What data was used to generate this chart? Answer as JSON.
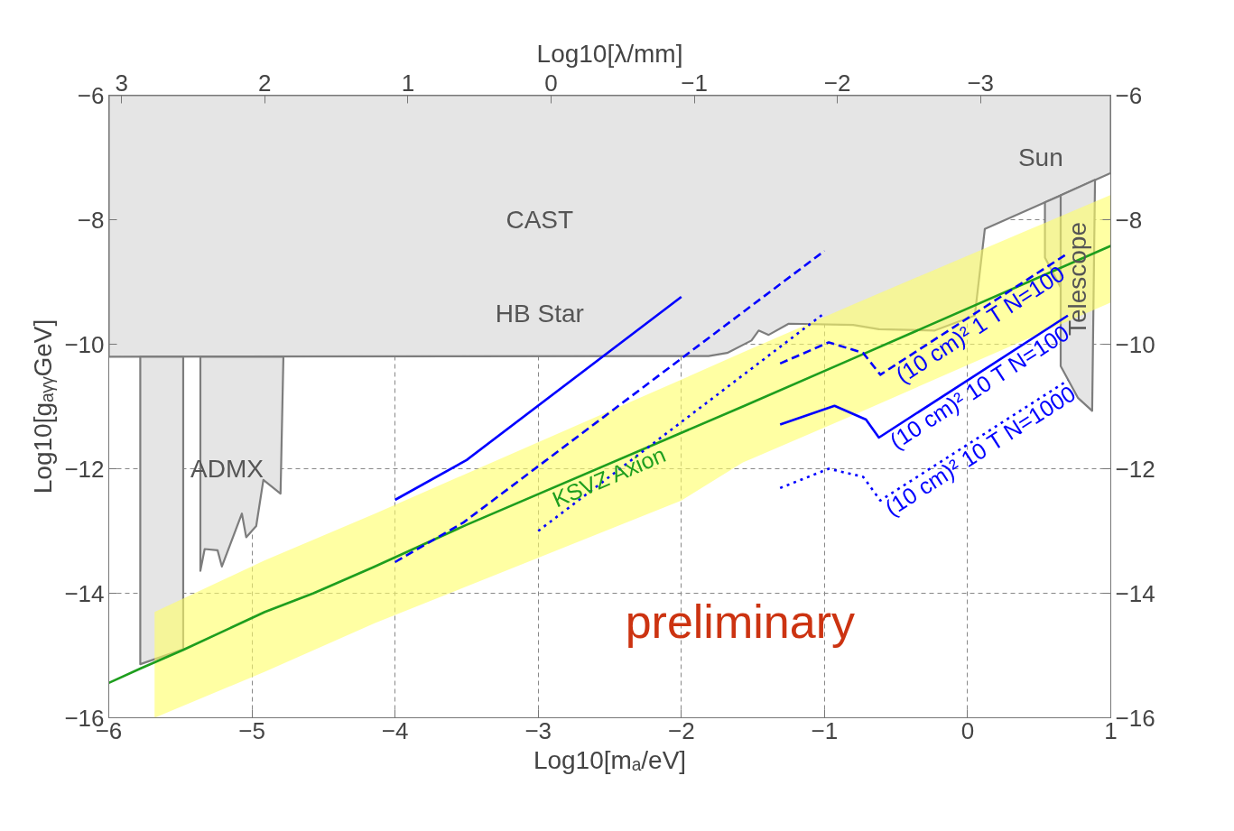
{
  "chart_data": {
    "type": "line",
    "xlabel": "Log10[mₐ/eV]",
    "ylabel": "Log10[gₐᵧᵧGeV]",
    "x2label": "Log10[λ/mm]",
    "xlim": [
      -6,
      1
    ],
    "xticks": [
      -6,
      -5,
      -4,
      -3,
      -2,
      -1,
      0,
      1
    ],
    "ylim": [
      -16,
      -6
    ],
    "yticks": [
      -16,
      -14,
      -12,
      -10,
      -8,
      -6
    ],
    "x2lim": [
      3.09,
      -3.91
    ],
    "x2ticks": [
      3,
      2,
      1,
      0,
      -1,
      -2,
      -3
    ],
    "y2lim": [
      -16,
      -6
    ],
    "y2ticks": [
      -16,
      -14,
      -12,
      -10,
      -8,
      -6
    ],
    "grid": true,
    "series": [
      {
        "type": "area",
        "color": "#e5e5e5",
        "line_style": "solid",
        "x": [
          -6,
          -1.81,
          -1.68,
          -1.51,
          -1.46,
          -1.39,
          -1.25,
          -0.8,
          -0.62,
          -0.23,
          0.05,
          0.12,
          0.54,
          1.0,
          1.0,
          -6
        ],
        "values": [
          -10.2,
          -10.19,
          -10.14,
          -9.94,
          -9.78,
          -9.85,
          -9.67,
          -9.69,
          -9.76,
          -9.78,
          -9.54,
          -8.15,
          -7.72,
          -7.25,
          -6,
          -6
        ]
      },
      {
        "type": "area",
        "color": "#e5e5e5",
        "line_style": "solid",
        "x": [
          -5.78,
          -5.78,
          -5.48,
          -5.48
        ],
        "values": [
          -10.2,
          -15.14,
          -14.9,
          -10.2
        ]
      },
      {
        "type": "area",
        "color": "#e5e5e5",
        "line_style": "solid",
        "x": [
          -5.36,
          -5.36,
          -5.33,
          -5.24,
          -5.21,
          -5.07,
          -5.04,
          -4.97,
          -4.92,
          -4.8,
          -4.78
        ],
        "values": [
          -10.2,
          -13.64,
          -13.29,
          -13.31,
          -13.57,
          -12.72,
          -13.1,
          -12.92,
          -12.18,
          -12.4,
          -10.2
        ]
      },
      {
        "type": "area",
        "color": "#e5e5e5",
        "line_style": "solid",
        "x": [
          0.54,
          0.54,
          0.66,
          0.66
        ],
        "values": [
          -7.72,
          -8.61,
          -9.13,
          -7.6
        ]
      },
      {
        "type": "area",
        "color": "#e5e5e5",
        "line_style": "solid",
        "x": [
          0.65,
          0.65,
          0.77,
          0.87,
          0.89
        ],
        "values": [
          -7.61,
          -10.35,
          -10.86,
          -11.07,
          -7.36
        ]
      },
      {
        "type": "area",
        "color": "#ffff66",
        "x": [
          -5.68,
          -4.91,
          -4.14,
          -2.0,
          -1.57,
          -0.79,
          0.53,
          1.0,
          1.0,
          0.53,
          -0.79,
          -1.57,
          -2.0,
          -4.14,
          -4.91,
          -5.68
        ],
        "values": [
          -16,
          -15.26,
          -14.48,
          -12.51,
          -11.9,
          -11.13,
          -9.8,
          -9.33,
          -7.6,
          -8.06,
          -9.35,
          -10.13,
          -10.57,
          -12.72,
          -13.47,
          -14.3
        ]
      },
      {
        "name": "KSVZ Axion",
        "color": "#1e9e1e",
        "line_style": "solid",
        "x": [
          -6,
          -5.78,
          -5.48,
          -4.91,
          -4.57,
          -4.15,
          -3.5,
          -1.57,
          -0.79,
          1.0
        ],
        "values": [
          -15.44,
          -15.21,
          -14.91,
          -14.3,
          -14.0,
          -13.58,
          -12.9,
          -11.0,
          -10.22,
          -8.42
        ]
      },
      {
        "color": "#0000ff",
        "line_style": "solid",
        "x": [
          -4,
          -3.5,
          -2
        ],
        "values": [
          -12.5,
          -11.86,
          -9.24
        ]
      },
      {
        "color": "#0000ff",
        "line_style": "dashed",
        "x": [
          -4,
          -3.52,
          -1
        ],
        "values": [
          -13.5,
          -12.86,
          -8.5
        ]
      },
      {
        "color": "#0000ff",
        "line_style": "dotted",
        "x": [
          -3,
          -1
        ],
        "values": [
          -13.0,
          -9.5
        ]
      },
      {
        "name": "(10 cm)² 1 T N=100",
        "color": "#0000ff",
        "line_style": "dashed",
        "x": [
          -1.31,
          -0.97,
          -0.73,
          -0.61,
          0.7
        ],
        "values": [
          -10.31,
          -9.97,
          -10.14,
          -10.49,
          -8.54
        ]
      },
      {
        "name": "(10 cm)² 10 T N=100",
        "color": "#0000ff",
        "line_style": "solid",
        "x": [
          -1.31,
          -0.93,
          -0.71,
          -0.62,
          0.7
        ],
        "values": [
          -11.29,
          -10.99,
          -11.21,
          -11.5,
          -9.54
        ]
      },
      {
        "name": "(10 cm)² 10 T N=1000",
        "color": "#0000ff",
        "line_style": "dotted",
        "x": [
          -1.31,
          -0.97,
          -0.73,
          -0.61,
          0.7
        ],
        "values": [
          -12.31,
          -12.0,
          -12.13,
          -12.51,
          -10.58
        ]
      }
    ],
    "annotations": [
      "CAST",
      "HB Star",
      "Sun",
      "ADMX",
      "Telescope",
      "preliminary"
    ]
  }
}
